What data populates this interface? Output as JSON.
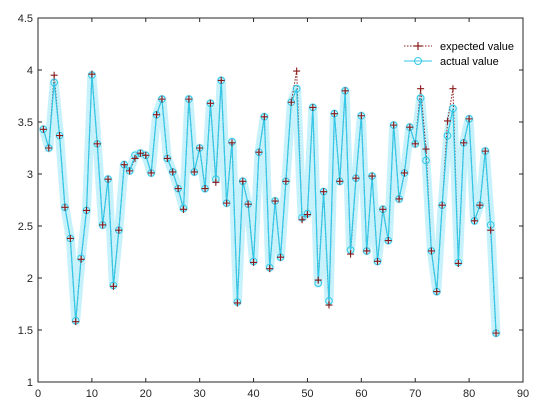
{
  "chart_data": {
    "type": "line",
    "title": "",
    "xlabel": "",
    "ylabel": "",
    "xlim": [
      0,
      90
    ],
    "ylim": [
      1,
      4.5
    ],
    "xticks": [
      0,
      10,
      20,
      30,
      40,
      50,
      60,
      70,
      80,
      90
    ],
    "yticks": [
      1,
      1.5,
      2,
      2.5,
      3,
      3.5,
      4,
      4.5
    ],
    "xtick_labels": [
      "0",
      "10",
      "20",
      "30",
      "40",
      "50",
      "60",
      "70",
      "80",
      "90"
    ],
    "ytick_labels": [
      "1",
      "1.5",
      "2",
      "2.5",
      "3",
      "3.5",
      "4",
      "4.5"
    ],
    "grid": false,
    "legend_position": "top-right",
    "x": [
      1,
      2,
      3,
      4,
      5,
      6,
      7,
      8,
      9,
      10,
      11,
      12,
      13,
      14,
      15,
      16,
      17,
      18,
      19,
      20,
      21,
      22,
      23,
      24,
      25,
      26,
      27,
      28,
      29,
      30,
      31,
      32,
      33,
      34,
      35,
      36,
      37,
      38,
      39,
      40,
      41,
      42,
      43,
      44,
      45,
      46,
      47,
      48,
      49,
      50,
      51,
      52,
      53,
      54,
      55,
      56,
      57,
      58,
      59,
      60,
      61,
      62,
      63,
      64,
      65,
      66,
      67,
      68,
      69,
      70,
      71,
      72,
      73,
      74,
      75,
      76,
      77,
      78,
      79,
      80,
      81,
      82,
      83,
      84,
      85
    ],
    "series": [
      {
        "name": "expected value",
        "color": "#8b1a1a",
        "style": "dotted",
        "marker": "+",
        "values": [
          3.43,
          3.25,
          3.95,
          3.37,
          2.68,
          2.38,
          1.58,
          2.18,
          2.65,
          3.96,
          3.29,
          2.51,
          2.95,
          1.92,
          2.46,
          3.09,
          3.03,
          3.15,
          3.2,
          3.18,
          3.01,
          3.57,
          3.72,
          3.15,
          3.02,
          2.86,
          2.66,
          3.72,
          3.02,
          3.25,
          2.86,
          3.68,
          2.92,
          3.9,
          2.72,
          3.3,
          1.76,
          2.93,
          2.71,
          2.15,
          3.21,
          3.55,
          2.09,
          2.74,
          2.2,
          2.93,
          3.69,
          3.99,
          2.56,
          2.61,
          3.64,
          1.98,
          2.83,
          1.74,
          3.58,
          2.93,
          3.8,
          2.23,
          2.96,
          3.56,
          2.26,
          2.98,
          2.16,
          2.66,
          2.36,
          3.47,
          2.76,
          3.01,
          3.45,
          3.29,
          3.82,
          3.24,
          2.26,
          1.87,
          2.7,
          3.51,
          3.82,
          2.14,
          3.3,
          3.53,
          2.55,
          2.7,
          3.22,
          2.46,
          1.47
        ]
      },
      {
        "name": "actual value",
        "color": "#33c9e8",
        "style": "solid",
        "marker": "o",
        "values": [
          3.43,
          3.25,
          3.88,
          3.37,
          2.68,
          2.38,
          1.59,
          2.19,
          2.65,
          3.95,
          3.29,
          2.51,
          2.95,
          1.93,
          2.46,
          3.09,
          3.03,
          3.18,
          3.2,
          3.18,
          3.01,
          3.57,
          3.72,
          3.15,
          3.02,
          2.86,
          2.67,
          3.72,
          3.02,
          3.25,
          2.86,
          3.68,
          2.95,
          3.9,
          2.72,
          3.31,
          1.77,
          2.93,
          2.71,
          2.16,
          3.21,
          3.55,
          2.1,
          2.74,
          2.2,
          2.93,
          3.69,
          3.82,
          2.58,
          2.62,
          3.64,
          1.95,
          2.83,
          1.78,
          3.58,
          2.93,
          3.8,
          2.27,
          2.96,
          3.56,
          2.26,
          2.98,
          2.16,
          2.66,
          2.36,
          3.47,
          2.76,
          3.01,
          3.45,
          3.29,
          3.73,
          3.13,
          2.26,
          1.87,
          2.7,
          3.37,
          3.63,
          2.15,
          3.3,
          3.53,
          2.55,
          2.7,
          3.22,
          2.51,
          1.47
        ]
      }
    ]
  }
}
